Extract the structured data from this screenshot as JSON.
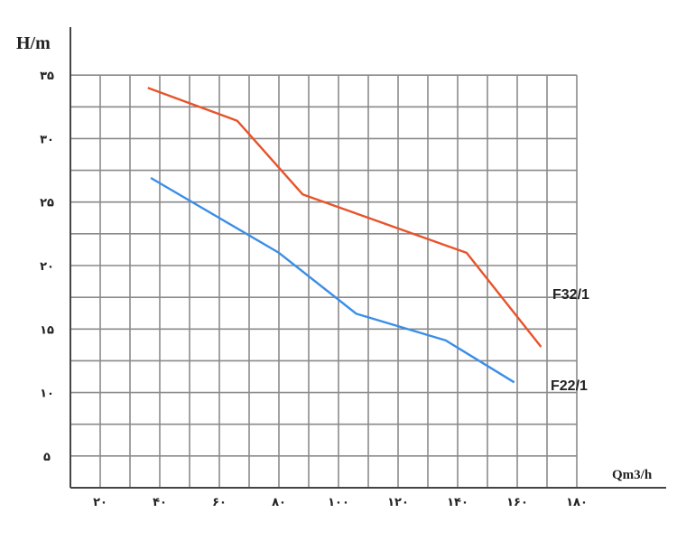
{
  "chart_data": {
    "type": "line",
    "ylabel": "H/m",
    "xlabel": "Qm3/h",
    "x_ticks": [
      {
        "value": 20,
        "label": "۲۰"
      },
      {
        "value": 40,
        "label": "۴۰"
      },
      {
        "value": 60,
        "label": "۶۰"
      },
      {
        "value": 80,
        "label": "۸۰"
      },
      {
        "value": 100,
        "label": "۱۰۰"
      },
      {
        "value": 120,
        "label": "۱۲۰"
      },
      {
        "value": 140,
        "label": "۱۴۰"
      },
      {
        "value": 160,
        "label": "۱۶۰"
      },
      {
        "value": 180,
        "label": "۱۸۰"
      }
    ],
    "y_ticks": [
      {
        "value": 5,
        "label": "۵"
      },
      {
        "value": 10,
        "label": "۱۰"
      },
      {
        "value": 15,
        "label": "۱۵"
      },
      {
        "value": 20,
        "label": "۲۰"
      },
      {
        "value": 25,
        "label": "۲۵"
      },
      {
        "value": 30,
        "label": "۳۰"
      },
      {
        "value": 35,
        "label": "۳۵"
      }
    ],
    "xlim": [
      10,
      190
    ],
    "ylim": [
      2.5,
      37.5
    ],
    "grid": true,
    "series": [
      {
        "name": "F32/1",
        "color": "#e8532a",
        "points": [
          [
            36,
            34.0
          ],
          [
            66,
            31.4
          ],
          [
            88,
            25.6
          ],
          [
            143,
            21.0
          ],
          [
            168,
            13.6
          ]
        ]
      },
      {
        "name": "F22/1",
        "color": "#3a8ee8",
        "points": [
          [
            37,
            26.9
          ],
          [
            80,
            21.0
          ],
          [
            106,
            16.2
          ],
          [
            136,
            14.1
          ],
          [
            159,
            10.8
          ]
        ]
      }
    ]
  }
}
